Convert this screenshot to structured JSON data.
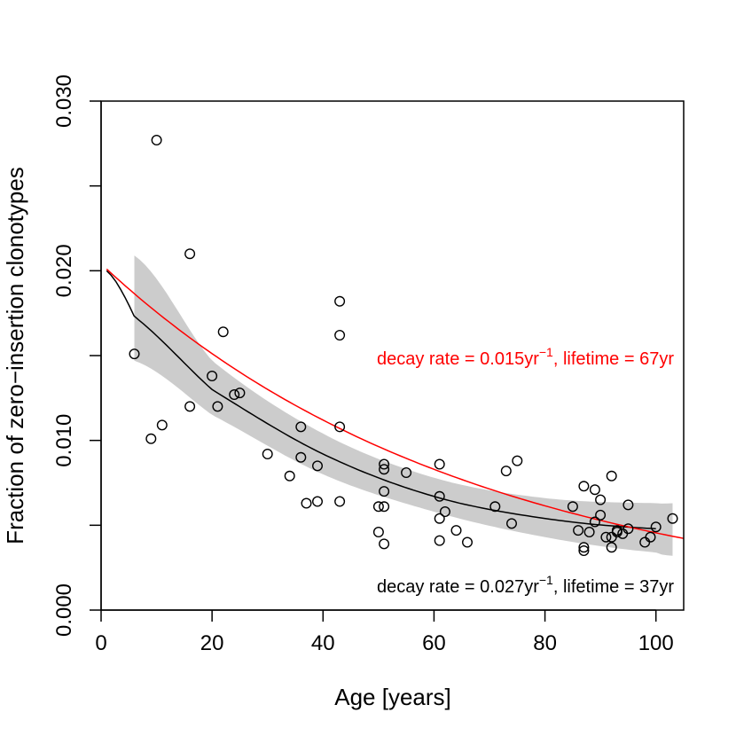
{
  "chart_data": {
    "type": "scatter",
    "title": "",
    "xlabel": "Age [years]",
    "ylabel": "Fraction of zero−insertion clonotypes",
    "xlim": [
      0,
      105
    ],
    "ylim": [
      0,
      0.03
    ],
    "xticks": [
      0,
      20,
      40,
      60,
      80,
      100
    ],
    "xtick_labels": [
      "0",
      "20",
      "40",
      "60",
      "80",
      "100"
    ],
    "yticks": [
      0,
      0.005,
      0.01,
      0.015,
      0.02,
      0.025,
      0.03
    ],
    "ytick_labels": [
      "0.000",
      "",
      "0.010",
      "",
      "0.020",
      "",
      "0.030"
    ],
    "grid": false,
    "points": [
      [
        6,
        0.0151
      ],
      [
        9,
        0.0101
      ],
      [
        10,
        0.0277
      ],
      [
        11,
        0.0109
      ],
      [
        16,
        0.021
      ],
      [
        16,
        0.012
      ],
      [
        20,
        0.0138
      ],
      [
        21,
        0.012
      ],
      [
        22,
        0.0164
      ],
      [
        24,
        0.0127
      ],
      [
        25,
        0.0128
      ],
      [
        30,
        0.0092
      ],
      [
        34,
        0.0079
      ],
      [
        36,
        0.0108
      ],
      [
        36,
        0.009
      ],
      [
        37,
        0.0063
      ],
      [
        39,
        0.0085
      ],
      [
        39,
        0.0064
      ],
      [
        43,
        0.0182
      ],
      [
        43,
        0.0162
      ],
      [
        43,
        0.0108
      ],
      [
        43,
        0.0064
      ],
      [
        50,
        0.0061
      ],
      [
        50,
        0.0046
      ],
      [
        51,
        0.0086
      ],
      [
        51,
        0.0083
      ],
      [
        51,
        0.007
      ],
      [
        51,
        0.0061
      ],
      [
        51,
        0.0039
      ],
      [
        55,
        0.0081
      ],
      [
        61,
        0.0086
      ],
      [
        61,
        0.0067
      ],
      [
        61,
        0.0054
      ],
      [
        61,
        0.0041
      ],
      [
        62,
        0.0058
      ],
      [
        64,
        0.0047
      ],
      [
        66,
        0.004
      ],
      [
        71,
        0.0061
      ],
      [
        73,
        0.0082
      ],
      [
        74,
        0.0051
      ],
      [
        75,
        0.0088
      ],
      [
        85,
        0.0061
      ],
      [
        86,
        0.0047
      ],
      [
        87,
        0.0073
      ],
      [
        87,
        0.0037
      ],
      [
        87,
        0.0035
      ],
      [
        88,
        0.0046
      ],
      [
        89,
        0.0071
      ],
      [
        89,
        0.0052
      ],
      [
        90,
        0.0065
      ],
      [
        90,
        0.0056
      ],
      [
        91,
        0.0043
      ],
      [
        92,
        0.0079
      ],
      [
        92,
        0.0043
      ],
      [
        92,
        0.0037
      ],
      [
        93,
        0.0047
      ],
      [
        93,
        0.0046
      ],
      [
        94,
        0.0045
      ],
      [
        95,
        0.0062
      ],
      [
        95,
        0.0048
      ],
      [
        98,
        0.004
      ],
      [
        99,
        0.0043
      ],
      [
        100,
        0.0049
      ],
      [
        103,
        0.0054
      ]
    ],
    "series": [
      {
        "name": "fit",
        "color": "#000000",
        "model": "exponential",
        "x_range": [
          1,
          100
        ],
        "x": [
          1,
          6,
          20,
          40,
          60,
          80,
          100
        ],
        "y": [
          0.02,
          0.0173,
          0.013,
          0.0092,
          0.0067,
          0.0054,
          0.0048
        ],
        "ci_x": [
          6,
          20,
          40,
          60,
          80,
          100,
          103
        ],
        "ci_lower": [
          0.0147,
          0.0115,
          0.008,
          0.0058,
          0.0043,
          0.0034,
          0.0032
        ],
        "ci_upper": [
          0.0209,
          0.0147,
          0.0104,
          0.0078,
          0.0066,
          0.0063,
          0.0063
        ],
        "ci_color": "#cccccc",
        "label": "decay rate = 0.027yr",
        "label_sup": "−1",
        "label_tail": ", lifetime = 37yr"
      },
      {
        "name": "reference",
        "color": "#ff0000",
        "model": "exponential",
        "x_range": [
          1,
          105
        ],
        "y0": 0.0201,
        "rate": 0.015,
        "label": "decay rate = 0.015yr",
        "label_sup": "−1",
        "label_tail": ", lifetime = 67yr"
      }
    ]
  }
}
